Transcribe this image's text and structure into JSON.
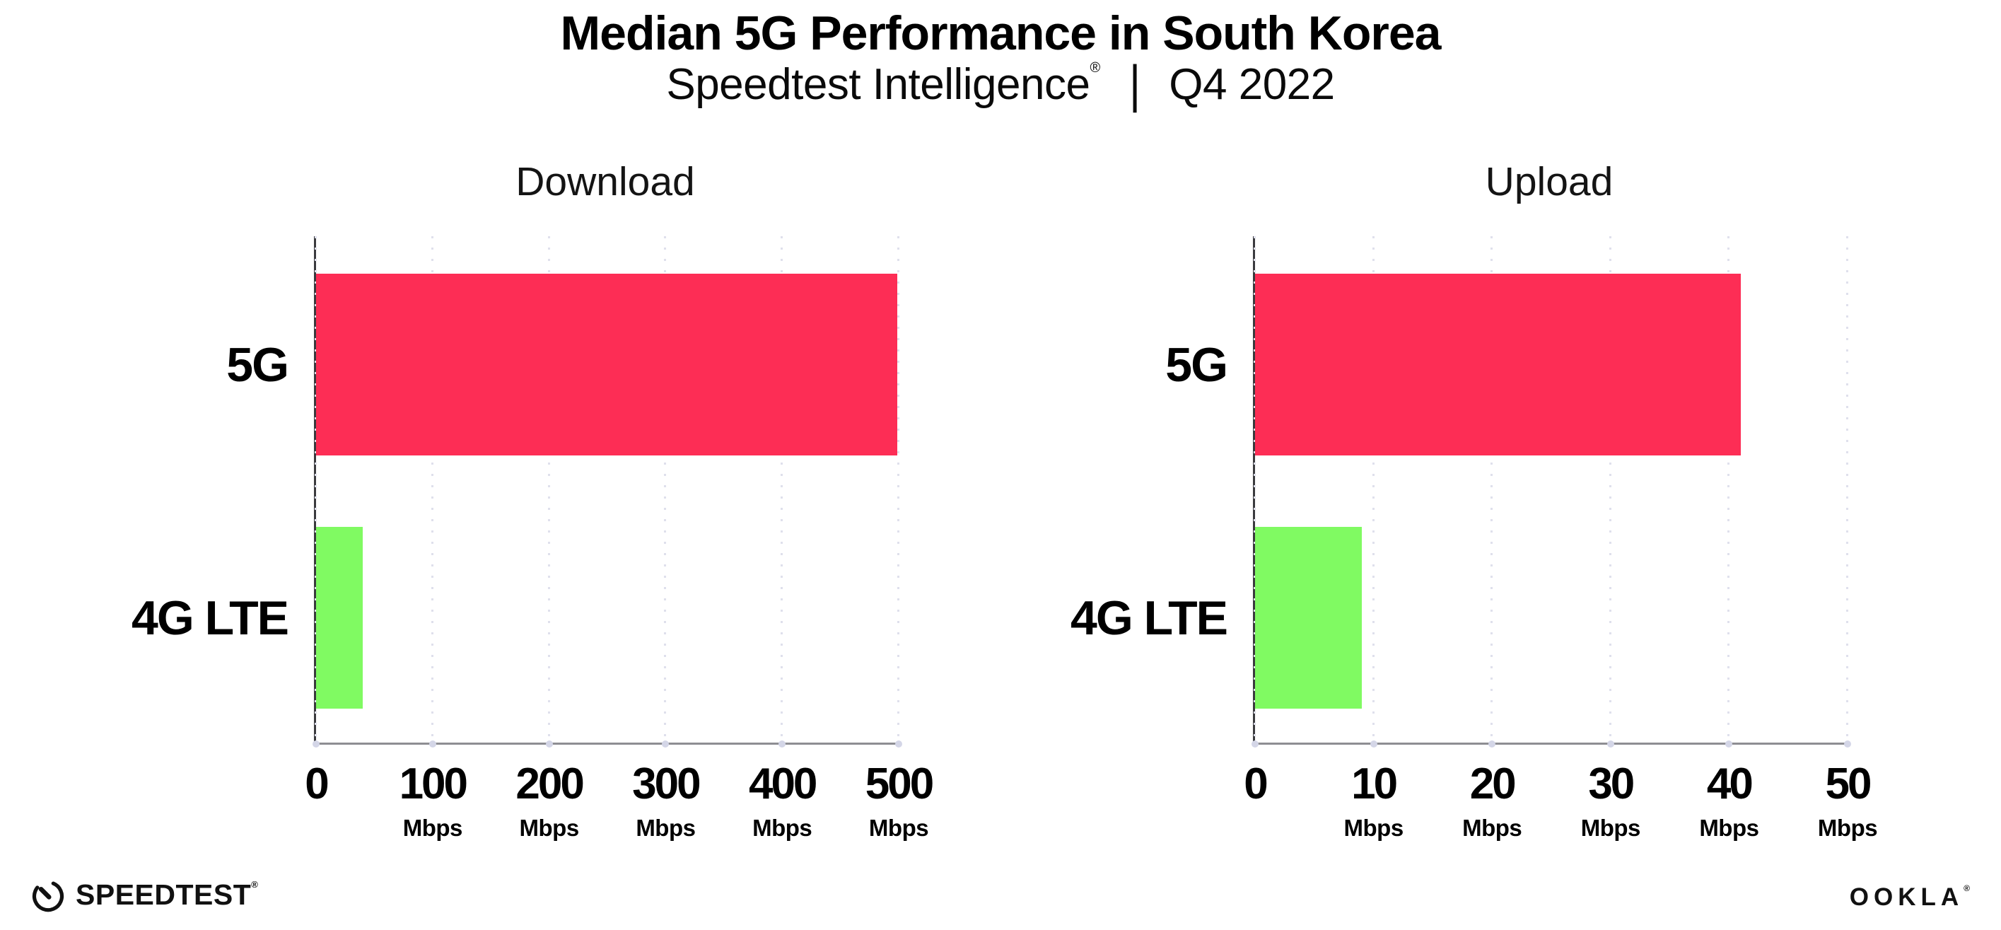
{
  "header": {
    "title": "Median 5G Performance in South Korea",
    "subtitle_brand": "Speedtest Intelligence",
    "subtitle_reg": "®",
    "subtitle_separator": "|",
    "subtitle_period": "Q4 2022"
  },
  "chart_data": [
    {
      "type": "bar",
      "orientation": "horizontal",
      "title": "Download",
      "categories": [
        "5G",
        "4G LTE"
      ],
      "values": [
        499,
        40
      ],
      "value_unit": "Mbps",
      "xlim": [
        0,
        500
      ],
      "xticks": [
        0,
        100,
        200,
        300,
        400,
        500
      ],
      "tick_unit_label": "Mbps",
      "bar_colors": [
        "#fd2d55",
        "#80fa62"
      ],
      "grid": "dotted-vertical",
      "legend": "none"
    },
    {
      "type": "bar",
      "orientation": "horizontal",
      "title": "Upload",
      "categories": [
        "5G",
        "4G LTE"
      ],
      "values": [
        41,
        9
      ],
      "value_unit": "Mbps",
      "xlim": [
        0,
        50
      ],
      "xticks": [
        0,
        10,
        20,
        30,
        40,
        50
      ],
      "tick_unit_label": "Mbps",
      "bar_colors": [
        "#fd2d55",
        "#80fa62"
      ],
      "grid": "dotted-vertical",
      "legend": "none"
    }
  ],
  "footer": {
    "speedtest_logo_text": "SPEEDTEST",
    "speedtest_reg": "®",
    "ookla_logo_text": "OOKLA",
    "ookla_reg": "®"
  },
  "colors": {
    "bar_5g": "#fd2d55",
    "bar_4g_lte": "#80fa62",
    "gridline": "#dfe0ec",
    "y_axis": "#3a3a3e",
    "x_axis": "#8e8e93",
    "background": "#ffffff",
    "text": "#000000"
  }
}
